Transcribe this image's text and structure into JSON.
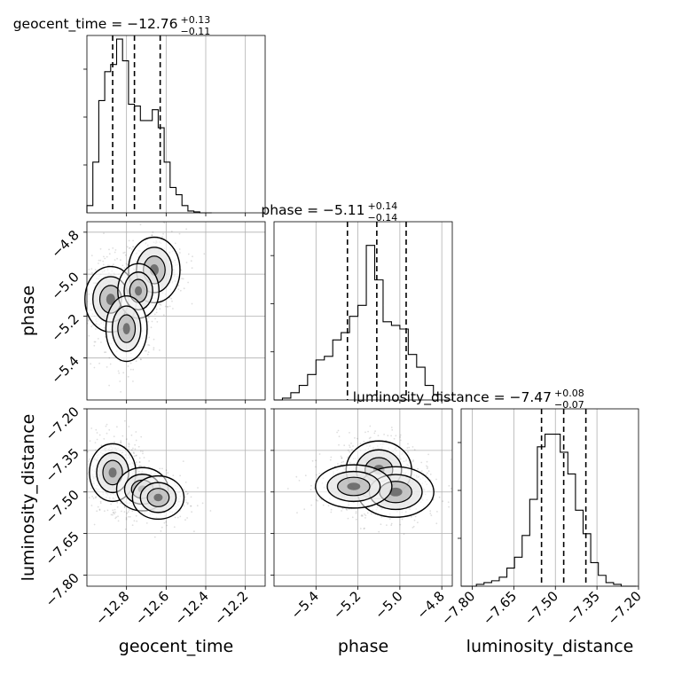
{
  "chart_data": {
    "type": "corner",
    "parameters": [
      "geocent_time",
      "phase",
      "luminosity_distance"
    ],
    "axis_labels": [
      "geocent_time",
      "phase",
      "luminosity_distance"
    ],
    "ranges": {
      "geocent_time": [
        -13.0,
        -12.1
      ],
      "phase": [
        -5.6,
        -4.75
      ],
      "luminosity_distance": [
        -7.84,
        -7.2
      ]
    },
    "ticks": {
      "geocent_time": [
        -12.8,
        -12.6,
        -12.4,
        -12.2
      ],
      "phase": [
        -5.4,
        -5.2,
        -5.0,
        -4.8
      ],
      "luminosity_distance": [
        -7.8,
        -7.65,
        -7.5,
        -7.35,
        -7.2
      ]
    },
    "tick_labels": {
      "geocent_time": [
        "−12.8",
        "−12.6",
        "−12.4",
        "−12.2"
      ],
      "phase": [
        "−5.4",
        "−5.2",
        "−5.0",
        "−4.8"
      ],
      "luminosity_distance": [
        "−7.80",
        "−7.65",
        "−7.50",
        "−7.35",
        "−7.20"
      ]
    },
    "phase_y_tick_labels": [
      "−4.8",
      "−5.0",
      "−5.2",
      "−5.4"
    ],
    "phase_y_ticks": [
      -4.8,
      -5.0,
      -5.2,
      -5.4
    ],
    "lumdist_y_tick_labels": [
      "−7.20",
      "−7.35",
      "−7.50",
      "−7.65",
      "−7.80"
    ],
    "lumdist_y_ticks": [
      -7.2,
      -7.35,
      -7.5,
      -7.65,
      -7.8
    ],
    "summaries": [
      {
        "param": "geocent_time",
        "median": -12.76,
        "plus": 0.13,
        "minus": 0.11,
        "median_text": "−12.76",
        "plus_text": "+0.13",
        "minus_text": "−0.11"
      },
      {
        "param": "phase",
        "median": -5.11,
        "plus": 0.14,
        "minus": 0.14,
        "median_text": "−5.11",
        "plus_text": "+0.14",
        "minus_text": "−0.14"
      },
      {
        "param": "luminosity_distance",
        "median": -7.47,
        "plus": 0.08,
        "minus": 0.07,
        "median_text": "−7.47",
        "plus_text": "+0.08",
        "minus_text": "−0.07"
      }
    ],
    "histograms": {
      "geocent_time": {
        "edges": [
          -13.0,
          -12.97,
          -12.94,
          -12.91,
          -12.88,
          -12.85,
          -12.82,
          -12.79,
          -12.76,
          -12.73,
          -12.7,
          -12.67,
          -12.64,
          -12.61,
          -12.58,
          -12.55,
          -12.52,
          -12.49,
          -12.46,
          -12.43,
          -12.4,
          -12.37
        ],
        "counts": [
          0.04,
          0.28,
          0.62,
          0.78,
          0.82,
          0.96,
          0.84,
          0.6,
          0.59,
          0.51,
          0.51,
          0.57,
          0.47,
          0.28,
          0.14,
          0.1,
          0.04,
          0.01,
          0.005,
          0.0,
          0.0
        ]
      },
      "phase": {
        "edges": [
          -5.6,
          -5.56,
          -5.52,
          -5.48,
          -5.44,
          -5.4,
          -5.36,
          -5.32,
          -5.28,
          -5.24,
          -5.2,
          -5.16,
          -5.12,
          -5.08,
          -5.04,
          -5.0,
          -4.96,
          -4.92,
          -4.88,
          -4.84,
          -4.8
        ],
        "counts": [
          0.0,
          0.01,
          0.04,
          0.08,
          0.14,
          0.22,
          0.24,
          0.33,
          0.37,
          0.46,
          0.52,
          0.85,
          0.66,
          0.43,
          0.41,
          0.39,
          0.25,
          0.18,
          0.08,
          0.03
        ]
      },
      "luminosity_distance": {
        "edges": [
          -7.84,
          -7.8125,
          -7.785,
          -7.7575,
          -7.73,
          -7.7025,
          -7.675,
          -7.6475,
          -7.62,
          -7.5925,
          -7.565,
          -7.5375,
          -7.51,
          -7.4825,
          -7.455,
          -7.4275,
          -7.4,
          -7.3725,
          -7.345,
          -7.3175,
          -7.29,
          -7.2625,
          -7.235,
          -7.2075
        ],
        "counts": [
          0.0,
          0.0,
          0.01,
          0.02,
          0.03,
          0.05,
          0.1,
          0.16,
          0.28,
          0.48,
          0.77,
          0.84,
          0.84,
          0.74,
          0.62,
          0.42,
          0.29,
          0.13,
          0.06,
          0.02,
          0.01,
          0.0,
          0.0
        ]
      }
    },
    "quantile_lines": {
      "geocent_time": [
        -12.87,
        -12.76,
        -12.63
      ],
      "phase": [
        -5.25,
        -5.11,
        -4.97
      ],
      "luminosity_distance": [
        -7.55,
        -7.47,
        -7.39
      ]
    },
    "density_blobs": {
      "phase_vs_geocent_time": [
        {
          "x": -12.88,
          "y": -5.12,
          "sx": 0.05,
          "sy": 0.06,
          "w": 1.0
        },
        {
          "x": -12.66,
          "y": -4.98,
          "sx": 0.05,
          "sy": 0.06,
          "w": 0.7
        },
        {
          "x": -12.74,
          "y": -5.08,
          "sx": 0.04,
          "sy": 0.05,
          "w": 0.35
        },
        {
          "x": -12.8,
          "y": -5.26,
          "sx": 0.04,
          "sy": 0.06,
          "w": 0.4
        }
      ],
      "lumdist_vs_geocent_time": [
        {
          "x": -12.87,
          "y": -7.43,
          "sx": 0.045,
          "sy": 0.04,
          "w": 1.0
        },
        {
          "x": -12.72,
          "y": -7.49,
          "sx": 0.05,
          "sy": 0.03,
          "w": 0.6
        },
        {
          "x": -12.64,
          "y": -7.52,
          "sx": 0.05,
          "sy": 0.03,
          "w": 0.4
        }
      ],
      "lumdist_vs_phase": [
        {
          "x": -5.1,
          "y": -7.42,
          "sx": 0.06,
          "sy": 0.04,
          "w": 1.0
        },
        {
          "x": -5.02,
          "y": -7.5,
          "sx": 0.07,
          "sy": 0.035,
          "w": 0.65
        },
        {
          "x": -5.22,
          "y": -7.48,
          "sx": 0.07,
          "sy": 0.03,
          "w": 0.45
        }
      ]
    }
  }
}
